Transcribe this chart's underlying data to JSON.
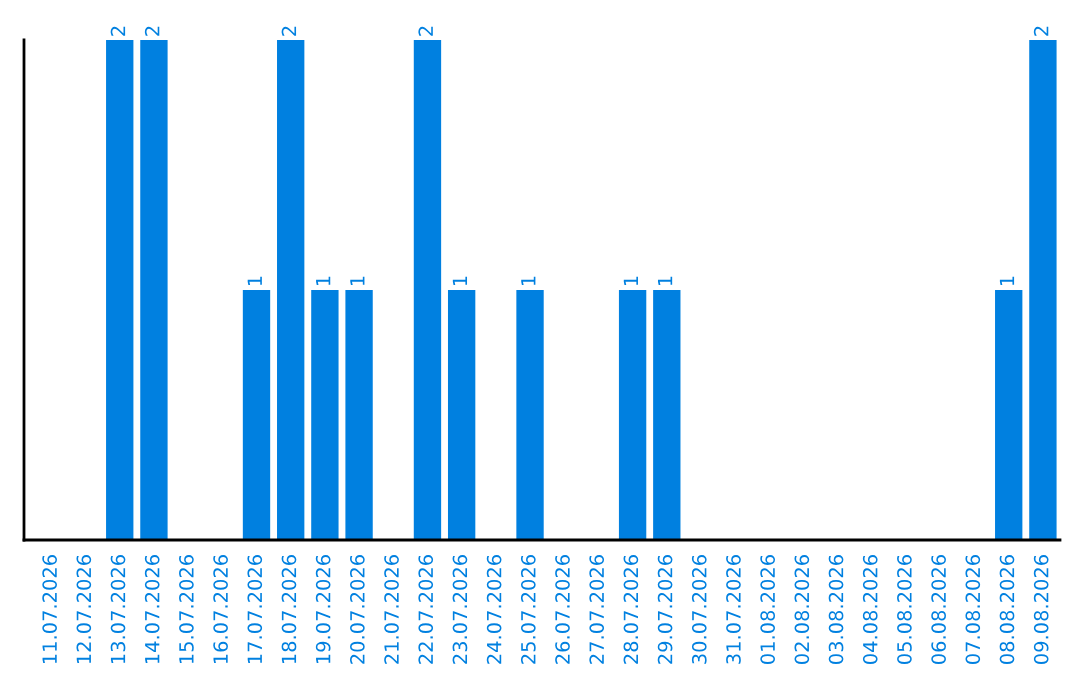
{
  "chart_data": {
    "type": "bar",
    "categories": [
      "11.07.2026",
      "12.07.2026",
      "13.07.2026",
      "14.07.2026",
      "15.07.2026",
      "16.07.2026",
      "17.07.2026",
      "18.07.2026",
      "19.07.2026",
      "20.07.2026",
      "21.07.2026",
      "22.07.2026",
      "23.07.2026",
      "24.07.2026",
      "25.07.2026",
      "26.07.2026",
      "27.07.2026",
      "28.07.2026",
      "29.07.2026",
      "30.07.2026",
      "31.07.2026",
      "01.08.2026",
      "02.08.2026",
      "03.08.2026",
      "04.08.2026",
      "05.08.2026",
      "06.08.2026",
      "07.08.2026",
      "08.08.2026",
      "09.08.2026"
    ],
    "values": [
      0,
      0,
      2,
      2,
      0,
      0,
      1,
      2,
      1,
      1,
      0,
      2,
      1,
      0,
      1,
      0,
      0,
      1,
      1,
      0,
      0,
      0,
      0,
      0,
      0,
      0,
      0,
      0,
      1,
      2
    ],
    "value_labels": [
      null,
      null,
      "2",
      "2",
      null,
      null,
      "1",
      "2",
      "1",
      "1",
      null,
      "2",
      "1",
      null,
      "1",
      null,
      null,
      "1",
      "1",
      null,
      null,
      null,
      null,
      null,
      null,
      null,
      null,
      null,
      "1",
      "2"
    ],
    "color": "#0080e0",
    "ylim": [
      0,
      2
    ],
    "tick_labels": "x",
    "grid": false,
    "legend": false
  }
}
